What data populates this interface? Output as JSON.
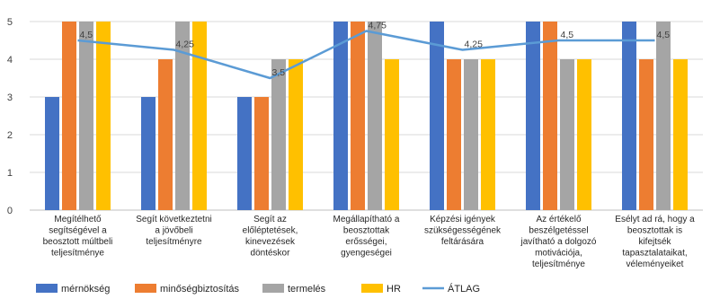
{
  "chart_data": {
    "type": "bar",
    "categories": [
      [
        "Megítélhető",
        "segítségével a",
        "beosztott múltbeli",
        "teljesítménye"
      ],
      [
        "Segít következtetni",
        "a jövőbeli",
        "teljesítményre"
      ],
      [
        "Segít az",
        "előléptetések,",
        "kinevezések",
        "döntéskor"
      ],
      [
        "Megállapítható a",
        "beosztottak",
        "erősségei,",
        "gyengeségei"
      ],
      [
        "Képzési igények",
        "szükségességének",
        "feltárására"
      ],
      [
        "Az értékelő",
        "beszélgetéssel",
        "javítható a dolgozó",
        "motivációja,",
        "teljesítménye"
      ],
      [
        "Esélyt ad rá, hogy a",
        "beosztottak is",
        "kifejtsék",
        "tapasztalataikat,",
        "véleményeiket"
      ]
    ],
    "series": [
      {
        "name": "mérnökség",
        "color": "#4472C4",
        "values": [
          3,
          3,
          3,
          5,
          5,
          5,
          5
        ]
      },
      {
        "name": "minőségbiztosítás",
        "color": "#ED7D31",
        "values": [
          5,
          4,
          3,
          5,
          4,
          5,
          4
        ]
      },
      {
        "name": "termelés",
        "color": "#A5A5A5",
        "values": [
          5,
          5,
          4,
          5,
          4,
          4,
          5
        ]
      },
      {
        "name": "HR",
        "color": "#FFC000",
        "values": [
          5,
          5,
          4,
          4,
          4,
          4,
          4
        ]
      }
    ],
    "line": {
      "name": "ÁTLAG",
      "color": "#5B9BD5",
      "values": [
        4.5,
        4.25,
        3.5,
        4.75,
        4.25,
        4.5,
        4.5
      ],
      "labels": [
        "4,5",
        "4,25",
        "3,5",
        "4,75",
        "4,25",
        "4,5",
        "4,5"
      ]
    },
    "ylim": [
      0,
      5
    ],
    "yticks": [
      "0",
      "1",
      "2",
      "3",
      "4",
      "5"
    ],
    "grid": true,
    "legend_position": "bottom"
  }
}
